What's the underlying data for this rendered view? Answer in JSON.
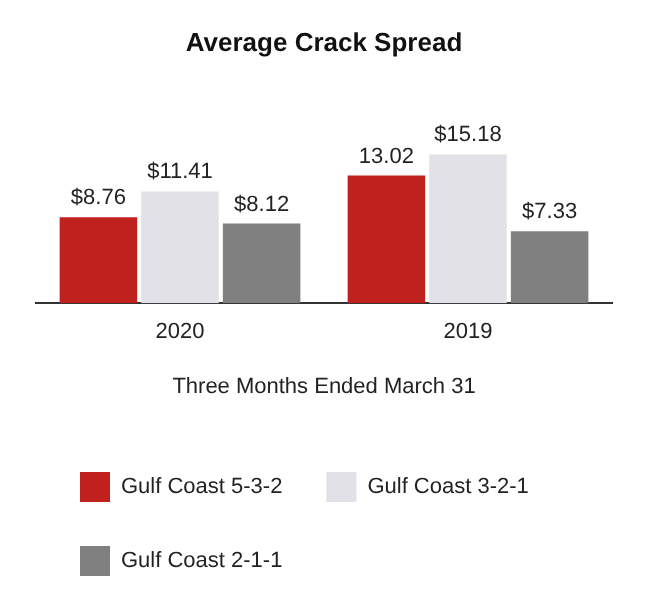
{
  "chart_data": {
    "type": "bar",
    "title": "Average Crack Spread",
    "xlabel": "Three Months Ended March 31",
    "categories": [
      "2020",
      "2019"
    ],
    "series": [
      {
        "name": "Gulf Coast 5-3-2",
        "color": "#c0211c",
        "values": [
          8.76,
          13.02
        ],
        "value_labels": [
          "$8.76",
          "13.02"
        ]
      },
      {
        "name": "Gulf Coast 3-2-1",
        "color": "#e1e1e7",
        "values": [
          11.41,
          15.18
        ],
        "value_labels": [
          "$11.41",
          "$15.18"
        ]
      },
      {
        "name": "Gulf Coast 2-1-1",
        "color": "#808080",
        "values": [
          8.12,
          7.33
        ],
        "value_labels": [
          "$8.12",
          "$7.33"
        ]
      }
    ],
    "legend": "bottom",
    "grid": false
  }
}
